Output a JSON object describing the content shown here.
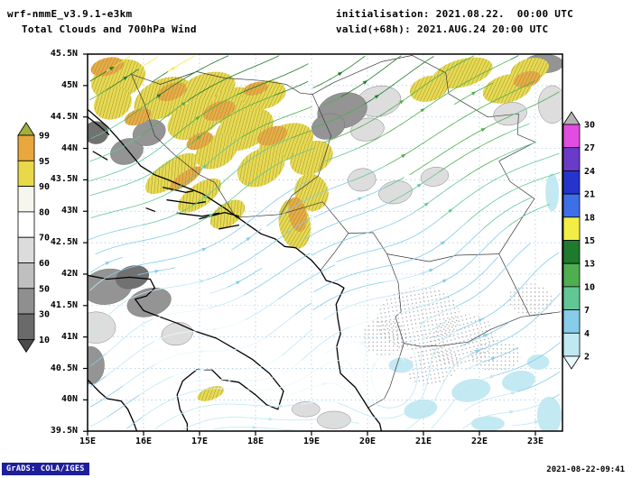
{
  "header": {
    "model_label": "wrf-nmmE_v3.9.1-e3km",
    "product_label": "Total Clouds and 700hPa Wind",
    "init_label": "initialisation: 2021.08.22.  00:00 UTC",
    "valid_label": "valid(+68h): 2021.AUG.24 20:00 UTC"
  },
  "footer": {
    "credit": "GrADS: COLA/IGES",
    "generated": "2021-08-22-09:41",
    "badge_color": "#1f1f9c"
  },
  "map": {
    "lat_ticks": [
      "45.5N",
      "45N",
      "44.5N",
      "44N",
      "43.5N",
      "43N",
      "42.5N",
      "42N",
      "41.5N",
      "41N",
      "40.5N",
      "40N",
      "39.5N"
    ],
    "lon_ticks": [
      "15E",
      "16E",
      "17E",
      "18E",
      "19E",
      "20E",
      "21E",
      "22E",
      "23E"
    ],
    "lat_range": [
      39.5,
      45.5
    ],
    "lon_range": [
      15,
      23.5
    ]
  },
  "colorbar_clouds": {
    "labels": [
      "99",
      "95",
      "90",
      "80",
      "70",
      "60",
      "50",
      "30",
      "10"
    ],
    "colors": [
      "#a4ae3a",
      "#e8a83e",
      "#e8d84a",
      "#f6f6ee",
      "#ffffff",
      "#dcdcdc",
      "#bfbfbf",
      "#8f8f8f",
      "#6a6a6a",
      "#4a4a4a"
    ]
  },
  "colorbar_wind": {
    "labels": [
      "30",
      "27",
      "24",
      "21",
      "18",
      "15",
      "13",
      "10",
      "7",
      "4",
      "2"
    ],
    "colors": [
      "#b4b4b4",
      "#e14ce1",
      "#6a3ac8",
      "#2434cd",
      "#3f6fe8",
      "#f2ee45",
      "#1f7a2e",
      "#4fae50",
      "#62c795",
      "#87cce8",
      "#c0e8f2",
      "#e8f8fb"
    ]
  },
  "chart_data": {
    "type": "heatmap",
    "title": "Total Clouds and 700hPa Wind",
    "x": {
      "label": "",
      "range": [
        15,
        23.5
      ],
      "tick_labels": [
        "15E",
        "16E",
        "17E",
        "18E",
        "19E",
        "20E",
        "21E",
        "22E",
        "23E"
      ]
    },
    "y": {
      "label": "",
      "range": [
        39.5,
        45.5
      ],
      "tick_labels": [
        "45.5N",
        "45N",
        "44.5N",
        "44N",
        "43.5N",
        "43N",
        "42.5N",
        "42N",
        "41.5N",
        "41N",
        "40.5N",
        "40N",
        "39.5N"
      ]
    },
    "layers": [
      {
        "name": "total clouds shading",
        "legend_position": "left colorbar",
        "scale_values": [
          99,
          95,
          90,
          80,
          70,
          60,
          50,
          30,
          10
        ]
      },
      {
        "name": "700hPa wind streamlines",
        "legend_position": "right colorbar",
        "scale_values": [
          30,
          27,
          24,
          21,
          18,
          15,
          13,
          10,
          7,
          4,
          2
        ]
      }
    ]
  }
}
